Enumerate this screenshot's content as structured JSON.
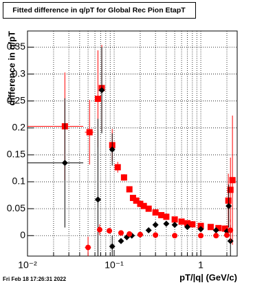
{
  "chart_data": {
    "type": "scatter",
    "title": "Fitted difference in q/pT for Global Rec Pion EtapT",
    "y_label": "difference in q/pT",
    "x_label": "pT/|q| (GeV/c)",
    "footer": "Fri Feb 18 17:26:31 2022",
    "x_log": true,
    "grid": true,
    "xlim": [
      0.01,
      2.63
    ],
    "ylim": [
      -0.038,
      0.38
    ],
    "xticks": [
      {
        "value": 0.01,
        "label": "10⁻²"
      },
      {
        "value": 0.1,
        "label": "10⁻¹"
      },
      1
    ],
    "xminorticks": [
      0.02,
      0.03,
      0.04,
      0.05,
      0.06,
      0.07,
      0.08,
      0.09,
      0.2,
      0.3,
      0.4,
      0.5,
      0.6,
      0.7,
      0.8,
      0.9,
      2
    ],
    "yticks": [
      0,
      0.05,
      0.1,
      0.15,
      0.2,
      0.25,
      0.3,
      0.35
    ],
    "series": [
      {
        "name": "squares",
        "color": "#ff0000",
        "marker": "square",
        "x": [
          0.027,
          0.052,
          0.065,
          0.072,
          0.095,
          0.11,
          0.13,
          0.15,
          0.165,
          0.18,
          0.2,
          0.22,
          0.25,
          0.3,
          0.35,
          0.4,
          0.5,
          0.6,
          0.7,
          0.8,
          1.0,
          1.3,
          1.6,
          1.9,
          2.08,
          2.2,
          2.32
        ],
        "values": [
          0.203,
          0.192,
          0.254,
          0.274,
          0.168,
          0.127,
          0.108,
          0.086,
          0.07,
          0.065,
          0.059,
          0.055,
          0.05,
          0.043,
          0.038,
          0.035,
          0.03,
          0.026,
          0.023,
          0.021,
          0.018,
          0.016,
          0.014,
          0.013,
          0.065,
          0.085,
          0.103
        ],
        "yerr": [
          0.1,
          0.06,
          0.09,
          0.08,
          0.03,
          0.01,
          0.006,
          0.004,
          0.003,
          0.003,
          0.002,
          0.002,
          0.002,
          0.002,
          0.002,
          0.002,
          0.002,
          0.002,
          0.002,
          0.002,
          0.002,
          0.003,
          0.004,
          0.006,
          0.05,
          0.06,
          0.12
        ],
        "xerr": [
          0.017,
          0.006,
          0.004,
          0.004,
          0.005,
          0,
          0,
          0,
          0,
          0,
          0,
          0,
          0,
          0,
          0,
          0,
          0,
          0,
          0,
          0,
          0,
          0,
          0,
          0,
          0,
          0,
          0
        ]
      },
      {
        "name": "diamonds",
        "color": "#000000",
        "marker": "diamond",
        "x": [
          0.027,
          0.065,
          0.072,
          0.095,
          0.095,
          0.12,
          0.14,
          0.16,
          0.2,
          0.25,
          0.3,
          0.4,
          0.5,
          0.7,
          1.0,
          1.5,
          2.0,
          2.1,
          2.2
        ],
        "values": [
          0.135,
          0.067,
          0.27,
          0.16,
          -0.02,
          -0.01,
          -0.003,
          0.0,
          0.002,
          0.01,
          0.02,
          0.022,
          0.02,
          0.016,
          0.012,
          0.01,
          0.008,
          0.055,
          -0.01
        ],
        "yerr": [
          0.12,
          0.15,
          0.08,
          0.03,
          0.02,
          0.005,
          0.003,
          0.002,
          0.002,
          0.002,
          0.002,
          0.002,
          0.002,
          0.002,
          0.002,
          0.003,
          0.005,
          0.04,
          0.03
        ],
        "xerr": [
          0.017,
          0.004,
          0.004,
          0.005,
          0,
          0,
          0,
          0,
          0,
          0,
          0,
          0,
          0,
          0,
          0,
          0,
          0,
          0,
          0
        ]
      },
      {
        "name": "circles",
        "color": "#ff0000",
        "marker": "circle",
        "x": [
          0.05,
          0.068,
          0.088,
          0.12,
          0.15,
          0.2,
          0.3,
          0.5,
          1.0,
          1.5,
          2.0,
          2.2
        ],
        "values": [
          -0.022,
          0.011,
          0.009,
          0.005,
          0.003,
          0.002,
          0.001,
          0.0,
          0.0,
          0.0,
          0.001,
          0.01
        ],
        "yerr": [
          0.02,
          0.01,
          0.005,
          0.002,
          0.002,
          0.001,
          0.001,
          0.001,
          0.001,
          0.001,
          0.003,
          0.02
        ],
        "xerr": [
          0.004,
          0,
          0,
          0,
          0,
          0,
          0,
          0,
          0,
          0,
          0,
          0
        ]
      }
    ]
  }
}
